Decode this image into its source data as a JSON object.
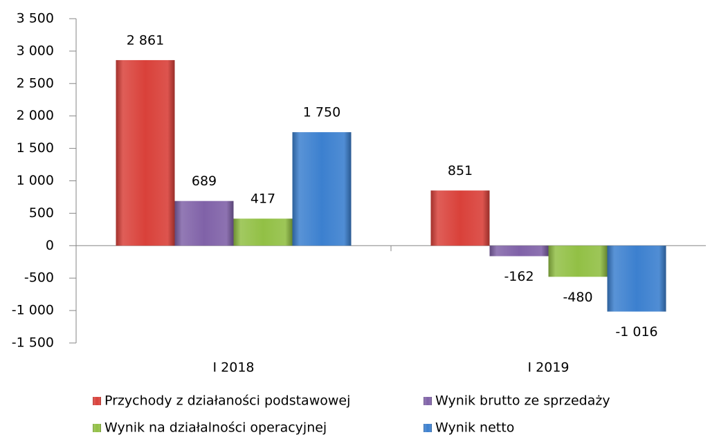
{
  "chart_data": {
    "type": "bar",
    "categories": [
      "I 2018",
      "I 2019"
    ],
    "series": [
      {
        "name": "Przychody z działaności podstawowej",
        "color": "#d9413a",
        "values": [
          2861,
          851
        ],
        "value_labels": [
          "2 861",
          "851"
        ]
      },
      {
        "name": "Wynik brutto ze sprzedaży",
        "color": "#8062a8",
        "values": [
          689,
          -162
        ],
        "value_labels": [
          "689",
          "-162"
        ]
      },
      {
        "name": "Wynik na działalności operacyjnej",
        "color": "#92c045",
        "values": [
          417,
          -480
        ],
        "value_labels": [
          "417",
          "-480"
        ]
      },
      {
        "name": "Wynik netto",
        "color": "#3c80cf",
        "values": [
          1750,
          -1016
        ],
        "value_labels": [
          "1 750",
          "-1 016"
        ]
      }
    ],
    "ylim": [
      -1500,
      3500
    ],
    "yticks": [
      {
        "value": -1500,
        "label": "-1 500"
      },
      {
        "value": -1000,
        "label": "-1 000"
      },
      -500,
      0,
      500,
      {
        "value": 1000,
        "label": "1 000"
      },
      {
        "value": 1500,
        "label": "1 500"
      },
      {
        "value": 2000,
        "label": "2 000"
      },
      {
        "value": 2500,
        "label": "2 500"
      },
      {
        "value": 3000,
        "label": "3 000"
      },
      {
        "value": 3500,
        "label": "3 500"
      }
    ],
    "grid": false,
    "legend": "bottom"
  }
}
